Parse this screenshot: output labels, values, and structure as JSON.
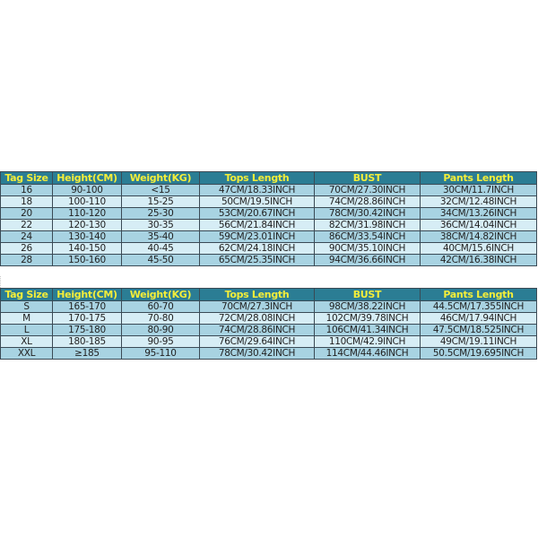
{
  "headers": [
    "Tag Size",
    "Height(CM)",
    "Weight(KG)",
    "Tops Length",
    "BUST",
    "Pants Length"
  ],
  "kids_rows": [
    [
      "16",
      "90-100",
      "<15",
      "47CM/18.33INCH",
      "70CM/27.30INCH",
      "30CM/11.7INCH"
    ],
    [
      "18",
      "100-110",
      "15-25",
      "50CM/19.5INCH",
      "74CM/28.86INCH",
      "32CM/12.48INCH"
    ],
    [
      "20",
      "110-120",
      "25-30",
      "53CM/20.67INCH",
      "78CM/30.42INCH",
      "34CM/13.26INCH"
    ],
    [
      "22",
      "120-130",
      "30-35",
      "56CM/21.84INCH",
      "82CM/31.98INCH",
      "36CM/14.04INCH"
    ],
    [
      "24",
      "130-140",
      "35-40",
      "59CM/23.01INCH",
      "86CM/33.54INCH",
      "38CM/14.82INCH"
    ],
    [
      "26",
      "140-150",
      "40-45",
      "62CM/24.18INCH",
      "90CM/35.10INCH",
      "40CM/15.6INCH"
    ],
    [
      "28",
      "150-160",
      "45-50",
      "65CM/25.35INCH",
      "94CM/36.66INCH",
      "42CM/16.38INCH"
    ]
  ],
  "adult_rows": [
    [
      "S",
      "165-170",
      "60-70",
      "70CM/27.3INCH",
      "98CM/38.22INCH",
      "44.5CM/17.355INCH"
    ],
    [
      "M",
      "170-175",
      "70-80",
      "72CM/28.08INCH",
      "102CM/39.78INCH",
      "46CM/17.94INCH"
    ],
    [
      "L",
      "175-180",
      "80-90",
      "74CM/28.86INCH",
      "106CM/41.34INCH",
      "47.5CM/18.525INCH"
    ],
    [
      "XL",
      "180-185",
      "90-95",
      "76CM/29.64INCH",
      "110CM/42.9INCH",
      "49CM/19.11INCH"
    ],
    [
      "XXL",
      "≥185",
      "95-110",
      "78CM/30.42INCH",
      "114CM/44.46INCH",
      "50.5CM/19.695INCH"
    ]
  ],
  "colors": {
    "header_bg": "#2b7d94",
    "header_text": "#f4ee3a",
    "row_dark": "#a8d3e2",
    "row_light": "#d6edf5"
  }
}
